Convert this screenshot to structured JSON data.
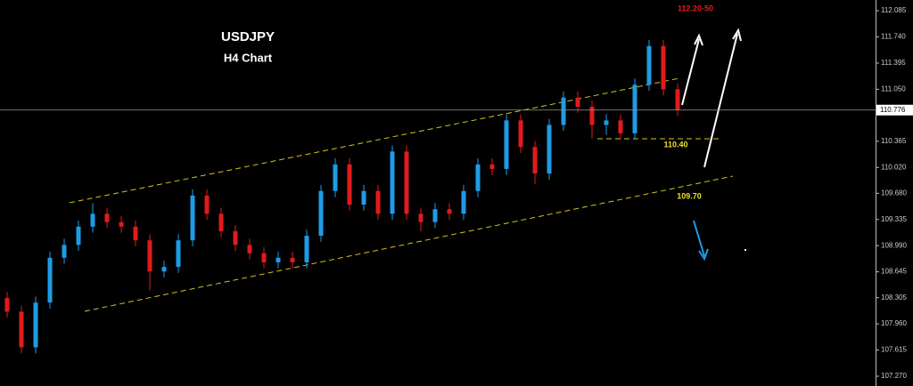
{
  "chart_data": {
    "type": "candlestick",
    "title": "USDJPY",
    "subtitle": "H4 Chart",
    "annotations": [
      "112.20-50",
      "110.40",
      "109.70"
    ],
    "current_price": 110.776,
    "up_color": "#1e9be6",
    "down_color": "#e01b1b",
    "open": [
      108.3,
      108.12,
      107.65,
      108.24,
      108.83,
      109.0,
      109.24,
      109.41,
      109.3,
      109.24,
      109.06,
      108.65,
      108.71,
      109.06,
      109.65,
      109.41,
      109.18,
      109.0,
      108.89,
      108.77,
      108.83,
      108.77,
      109.12,
      109.71,
      110.06,
      109.53,
      109.71,
      109.41,
      110.23,
      109.41,
      109.3,
      109.47,
      109.41,
      109.71,
      110.06,
      110.0,
      110.64,
      110.29,
      109.94,
      110.58,
      110.94,
      110.82,
      110.58,
      110.64,
      110.47,
      111.11,
      111.62,
      111.05
    ],
    "high": [
      108.38,
      108.2,
      108.32,
      108.91,
      109.08,
      109.32,
      109.55,
      109.49,
      109.38,
      109.32,
      109.14,
      108.79,
      109.14,
      109.73,
      109.73,
      109.49,
      109.26,
      109.08,
      108.97,
      108.91,
      108.91,
      109.2,
      109.79,
      110.14,
      110.14,
      109.79,
      109.79,
      110.31,
      110.31,
      109.49,
      109.55,
      109.55,
      109.79,
      110.14,
      110.14,
      110.72,
      110.72,
      110.37,
      110.66,
      111.02,
      111.02,
      110.9,
      110.72,
      110.72,
      111.19,
      111.7,
      111.7,
      111.13
    ],
    "low": [
      108.04,
      107.57,
      107.57,
      108.16,
      108.75,
      108.92,
      109.16,
      109.22,
      109.16,
      108.98,
      108.4,
      108.57,
      108.63,
      108.98,
      109.33,
      109.1,
      108.92,
      108.81,
      108.69,
      108.69,
      108.69,
      108.69,
      109.04,
      109.63,
      109.45,
      109.45,
      109.33,
      109.33,
      109.33,
      109.18,
      109.22,
      109.33,
      109.33,
      109.63,
      109.92,
      109.92,
      110.21,
      109.8,
      109.86,
      110.5,
      110.74,
      110.4,
      110.45,
      110.39,
      110.39,
      111.03,
      110.97,
      110.7
    ],
    "close": [
      108.12,
      107.65,
      108.24,
      108.83,
      109.0,
      109.24,
      109.41,
      109.3,
      109.24,
      109.06,
      108.65,
      108.71,
      109.06,
      109.65,
      109.41,
      109.18,
      109.0,
      108.89,
      108.77,
      108.83,
      108.77,
      109.12,
      109.71,
      110.06,
      109.53,
      109.71,
      109.41,
      110.23,
      109.41,
      109.3,
      109.47,
      109.41,
      109.71,
      110.06,
      110.0,
      110.64,
      110.29,
      109.94,
      110.58,
      110.94,
      110.82,
      110.58,
      110.64,
      110.47,
      111.11,
      111.62,
      111.05,
      110.78
    ],
    "ylim": [
      107.141,
      112.226
    ],
    "yticks": [
      112.085,
      {
        "value": 111.74,
        "label": "111.740"
      },
      111.395,
      {
        "value": 111.05,
        "label": "111.050"
      },
      110.365,
      {
        "value": 110.02,
        "label": "110.020"
      },
      {
        "value": 109.68,
        "label": "109.680"
      },
      109.335,
      {
        "value": 108.99,
        "label": "108.990"
      },
      108.645,
      108.305,
      {
        "value": 107.96,
        "label": "107.960"
      },
      107.615,
      {
        "value": 107.27,
        "label": "107.270"
      }
    ]
  }
}
